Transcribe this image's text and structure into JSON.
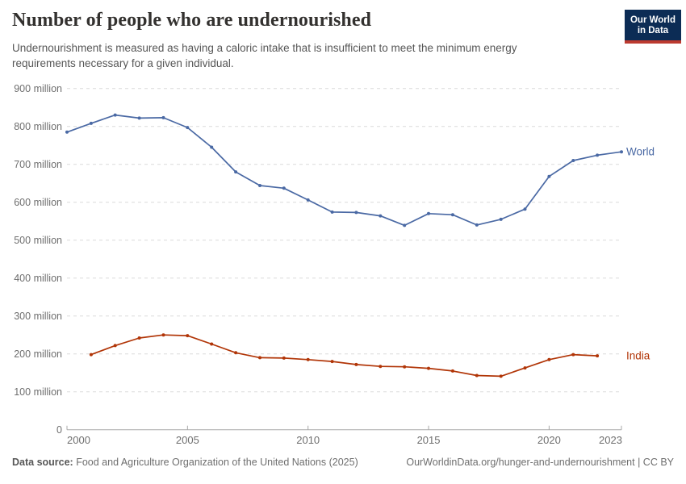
{
  "header": {
    "title": "Number of people who are undernourished",
    "subtitle": "Undernourishment is measured as having a caloric intake that is insufficient to meet the minimum energy requirements necessary for a given individual.",
    "logo": {
      "line1": "Our World",
      "line2": "in Data",
      "bg_color": "#0c2c55",
      "accent_color": "#bc3a30"
    }
  },
  "chart_data": {
    "type": "line",
    "title": "Number of people who are undernourished",
    "xlabel": "",
    "ylabel": "",
    "unit": "people",
    "x_range": [
      2000,
      2023
    ],
    "y_range_millions": [
      0,
      900
    ],
    "y_ticks_millions": [
      0,
      100,
      200,
      300,
      400,
      500,
      600,
      700,
      800,
      900
    ],
    "y_tick_suffix": " million",
    "x_ticks": [
      2000,
      2005,
      2010,
      2015,
      2020,
      2023
    ],
    "grid": "dashed-horizontal",
    "legend_position": "end-of-line-labels",
    "axis_color": "#a8a8a8",
    "grid_color": "#dadada",
    "series": [
      {
        "name": "World",
        "color": "#4a69a4",
        "x": [
          2000,
          2001,
          2002,
          2003,
          2004,
          2005,
          2006,
          2007,
          2008,
          2009,
          2010,
          2011,
          2012,
          2013,
          2014,
          2015,
          2016,
          2017,
          2018,
          2019,
          2020,
          2021,
          2022,
          2023
        ],
        "values_millions": [
          785,
          808,
          830,
          822,
          823,
          797,
          745,
          680,
          644,
          637,
          606,
          574,
          573,
          564,
          539,
          570,
          567,
          540,
          555,
          582,
          668,
          710,
          724,
          733
        ]
      },
      {
        "name": "India",
        "color": "#b13507",
        "x": [
          2001,
          2002,
          2003,
          2004,
          2005,
          2006,
          2007,
          2008,
          2009,
          2010,
          2011,
          2012,
          2013,
          2014,
          2015,
          2016,
          2017,
          2018,
          2019,
          2020,
          2021,
          2022
        ],
        "values_millions": [
          198,
          222,
          242,
          250,
          248,
          226,
          203,
          190,
          189,
          185,
          180,
          172,
          167,
          166,
          162,
          155,
          143,
          141,
          163,
          185,
          198,
          195
        ]
      }
    ]
  },
  "footer": {
    "source_label": "Data source:",
    "source_text": "Food and Agriculture Organization of the United Nations (2025)",
    "credit": "OurWorldinData.org/hunger-and-undernourishment | CC BY"
  }
}
